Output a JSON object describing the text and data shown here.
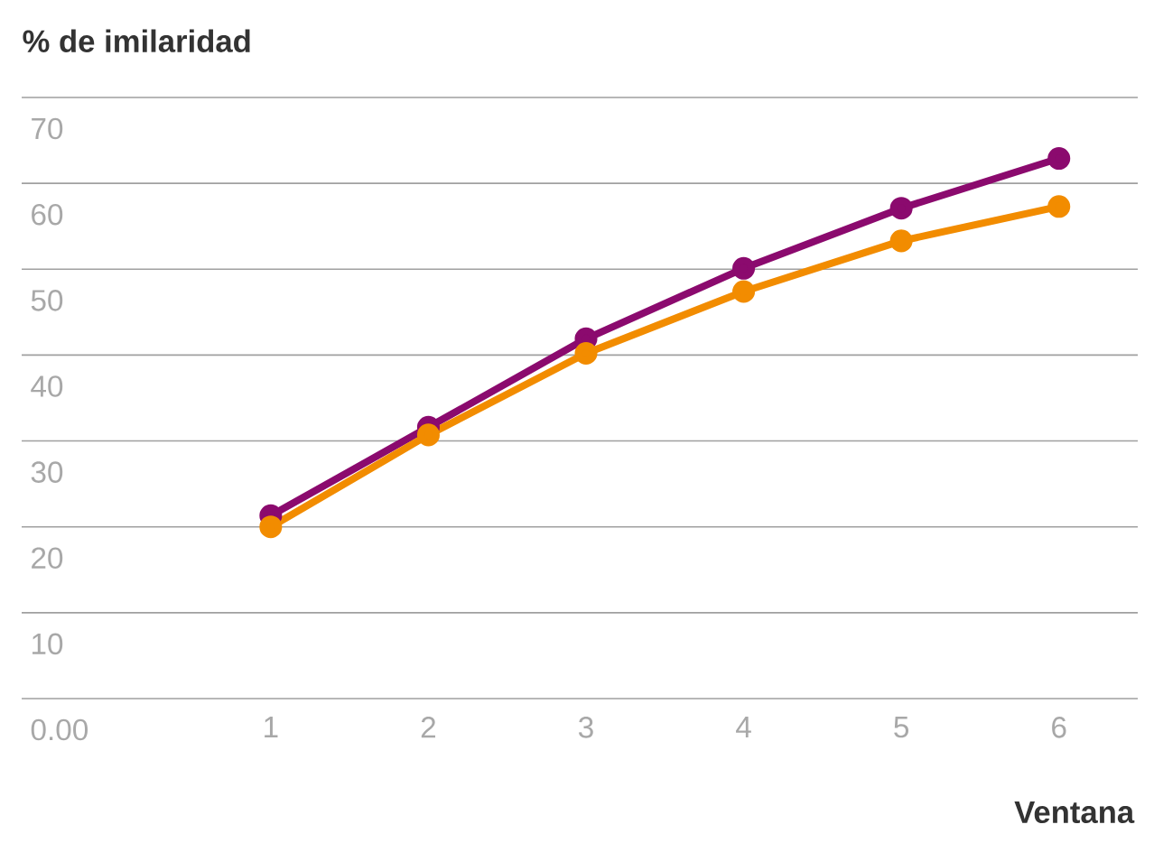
{
  "chart_data": {
    "type": "line",
    "ylabel": "% de imilaridad",
    "xlabel": "Ventana",
    "x": [
      1,
      2,
      3,
      4,
      5,
      6
    ],
    "series": [
      {
        "color": "#8b0a6e",
        "values": [
          21.3,
          31.6,
          41.9,
          50.1,
          57.1,
          62.9
        ]
      },
      {
        "color": "#f28c00",
        "values": [
          20.0,
          30.7,
          40.2,
          47.4,
          53.3,
          57.3
        ]
      }
    ],
    "xlim": [
      -0.58,
      6.5
    ],
    "xticks": [
      1,
      2,
      3,
      4,
      5,
      6
    ],
    "ylim": [
      0,
      70
    ],
    "yticks": [
      {
        "value": 0,
        "label": "0.00"
      },
      10,
      20,
      30,
      40,
      50,
      60,
      70
    ],
    "grid": "y",
    "marker": "circle",
    "line_style": "solid"
  }
}
